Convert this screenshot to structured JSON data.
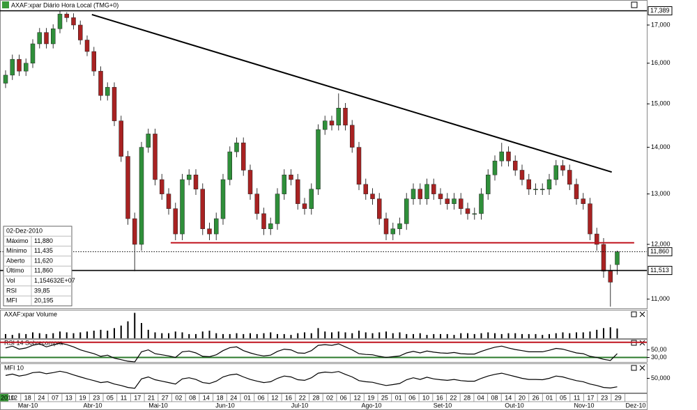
{
  "chart_data": [
    {
      "type": "candlestick",
      "title": "AXAF:xpar Diário Hora Local (TMG+0)",
      "log": true,
      "ylim": [
        10840,
        17670
      ],
      "yticks": [
        {
          "value": 11000,
          "label": "11,000"
        },
        {
          "value": 12000,
          "label": "12,000"
        },
        {
          "value": 13000,
          "label": "13,000"
        },
        {
          "value": 14000,
          "label": "14,000"
        },
        {
          "value": 15000,
          "label": "15,000"
        },
        {
          "value": 16000,
          "label": "16,000"
        },
        {
          "value": 17000,
          "label": "17,000"
        }
      ],
      "up_color": "#2f8f3a",
      "down_color": "#a82222",
      "open": [
        15500,
        15700,
        16100,
        15800,
        16000,
        16500,
        16800,
        16500,
        16900,
        17300,
        17200,
        17000,
        16600,
        16300,
        15800,
        15200,
        15400,
        14600,
        13800,
        12500,
        12000,
        14000,
        14300,
        13300,
        13000,
        12700,
        12200,
        13300,
        13400,
        13100,
        12300,
        12200,
        12500,
        13300,
        13900,
        14100,
        13500,
        13000,
        12600,
        12300,
        12400,
        13000,
        13400,
        13300,
        12800,
        12700,
        13100,
        14400,
        14600,
        14500,
        14900,
        14500,
        14000,
        13200,
        13000,
        12900,
        12500,
        12200,
        12300,
        12400,
        12900,
        13100,
        12900,
        13200,
        13000,
        12900,
        12800,
        12900,
        12700,
        12600,
        12600,
        13000,
        13400,
        13700,
        13900,
        13700,
        13500,
        13300,
        13100,
        13100,
        13100,
        13300,
        13600,
        13500,
        13200,
        12900,
        12800,
        12200,
        12000,
        11500,
        11620
      ],
      "high": [
        15820,
        16220,
        16220,
        16120,
        16620,
        16920,
        16920,
        17020,
        17389,
        17350,
        17320,
        17120,
        16720,
        16420,
        15920,
        15520,
        15520,
        14720,
        13920,
        12620,
        14120,
        14420,
        14420,
        13420,
        13120,
        12820,
        13420,
        13520,
        13520,
        13220,
        12420,
        12620,
        13420,
        14020,
        14220,
        14220,
        13620,
        13120,
        12720,
        12520,
        13120,
        13520,
        13520,
        13420,
        12920,
        13220,
        14520,
        14720,
        14720,
        15250,
        15020,
        14620,
        14120,
        13320,
        13120,
        13020,
        12620,
        12420,
        12520,
        13020,
        13220,
        13220,
        13320,
        13320,
        13120,
        13020,
        13020,
        13020,
        12820,
        12720,
        13120,
        13520,
        13820,
        14100,
        14020,
        13820,
        13620,
        13420,
        13220,
        13220,
        13420,
        13720,
        13720,
        13620,
        13320,
        13020,
        12920,
        12320,
        12120,
        11620,
        11880
      ],
      "low": [
        15380,
        15580,
        15680,
        15680,
        15880,
        16380,
        16380,
        16380,
        16780,
        17080,
        16880,
        16480,
        16180,
        15680,
        15080,
        15080,
        14480,
        13680,
        12380,
        11500,
        11880,
        13880,
        13180,
        12880,
        12580,
        12080,
        12080,
        13180,
        12980,
        12180,
        12080,
        12080,
        12380,
        13180,
        13780,
        13380,
        12880,
        12480,
        12180,
        12180,
        12280,
        12880,
        13180,
        12680,
        12580,
        12580,
        12980,
        14280,
        14380,
        14380,
        14380,
        13880,
        13080,
        12880,
        12780,
        12380,
        12080,
        12080,
        12180,
        12280,
        12780,
        12780,
        12780,
        12880,
        12780,
        12680,
        12680,
        12580,
        12480,
        12480,
        12480,
        12880,
        13280,
        13580,
        13580,
        13380,
        13180,
        12980,
        12980,
        12980,
        12980,
        13180,
        13380,
        13080,
        12780,
        12680,
        12080,
        11880,
        11380,
        10870,
        11435
      ],
      "close": [
        15700,
        16100,
        15800,
        16000,
        16500,
        16800,
        16500,
        16900,
        17300,
        17200,
        17000,
        16600,
        16300,
        15800,
        15200,
        15400,
        14600,
        13800,
        12500,
        12000,
        14000,
        14300,
        13300,
        13000,
        12700,
        12200,
        13300,
        13400,
        13100,
        12300,
        12200,
        12500,
        13300,
        13900,
        14100,
        13500,
        13000,
        12600,
        12300,
        12400,
        13000,
        13400,
        13300,
        12800,
        12700,
        13100,
        14400,
        14600,
        14500,
        14900,
        14500,
        14000,
        13200,
        13000,
        12900,
        12500,
        12200,
        12300,
        12400,
        12900,
        13100,
        12900,
        13200,
        13000,
        12900,
        12800,
        12900,
        12700,
        12600,
        12600,
        13000,
        13400,
        13700,
        13900,
        13700,
        13500,
        13300,
        13100,
        13100,
        13100,
        13300,
        13600,
        13500,
        13200,
        12900,
        12800,
        12200,
        12000,
        11500,
        11300,
        11860
      ],
      "price_markers": [
        {
          "value": 17389,
          "label": "17,389",
          "style": "solid"
        },
        {
          "value": 11860,
          "label": "11,860",
          "style": "dotted"
        },
        {
          "value": 11513,
          "label": "11,513",
          "style": "solid"
        }
      ],
      "trendlines": [
        {
          "x": [
            12.7,
            89.2
          ],
          "y": [
            17284,
            13460
          ],
          "color": "#000000"
        },
        {
          "x": [
            24.3,
            92.5
          ],
          "y": [
            12030,
            12030
          ],
          "color": "#c0141e"
        }
      ],
      "info_box": {
        "date": "02-Dez-2010",
        "rows": [
          [
            "Máximo",
            "11,880"
          ],
          [
            "Mínimo",
            "11,435"
          ],
          [
            "Aberto",
            "11,620"
          ],
          [
            "Último",
            "11,860"
          ],
          [
            "Vol",
            "1,154632E+07"
          ],
          [
            "RSI",
            "39,85"
          ],
          [
            "MFI",
            "20,195"
          ]
        ]
      }
    },
    {
      "type": "bar",
      "title": "AXAF:xpar Volume",
      "ylim": [
        0,
        32
      ],
      "color": "#000000",
      "values": [
        5,
        4,
        6,
        5,
        7,
        6,
        5,
        6,
        8,
        7,
        6,
        7,
        8,
        9,
        10,
        9,
        12,
        15,
        20,
        30,
        18,
        10,
        7,
        6,
        6,
        8,
        7,
        5,
        5,
        8,
        9,
        6,
        5,
        5,
        6,
        5,
        6,
        5,
        6,
        7,
        5,
        5,
        4,
        6,
        7,
        6,
        12,
        8,
        7,
        8,
        7,
        6,
        9,
        7,
        6,
        7,
        8,
        6,
        7,
        5,
        5,
        6,
        4,
        5,
        5,
        5,
        4,
        6,
        6,
        5,
        6,
        7,
        6,
        5,
        6,
        6,
        5,
        5,
        5,
        4,
        5,
        6,
        7,
        6,
        7,
        7,
        8,
        10,
        12,
        13,
        11.54632
      ]
    },
    {
      "type": "line",
      "title": "RSI 14 Sobrecompra",
      "ylim": [
        18,
        77
      ],
      "color": "#000000",
      "yticks": [
        {
          "value": 50,
          "label": "50,00"
        },
        {
          "value": 30,
          "label": "30,00"
        }
      ],
      "bands": [
        {
          "value": 70,
          "color": "#c0141e"
        },
        {
          "value": 30,
          "color": "#2a7a2a"
        }
      ],
      "values": [
        55,
        60,
        52,
        55,
        62,
        66,
        58,
        63,
        68,
        64,
        58,
        50,
        45,
        40,
        33,
        36,
        28,
        24,
        20,
        18,
        45,
        50,
        40,
        37,
        34,
        30,
        45,
        47,
        42,
        33,
        32,
        37,
        48,
        56,
        58,
        48,
        42,
        37,
        34,
        36,
        46,
        52,
        50,
        42,
        41,
        48,
        62,
        64,
        62,
        66,
        58,
        50,
        40,
        38,
        37,
        33,
        30,
        32,
        34,
        42,
        46,
        42,
        47,
        44,
        42,
        41,
        43,
        40,
        39,
        39,
        46,
        52,
        57,
        60,
        55,
        51,
        48,
        45,
        45,
        45,
        49,
        54,
        52,
        47,
        42,
        40,
        33,
        30,
        25,
        22,
        39.85
      ]
    },
    {
      "type": "line",
      "title": "MFI 10",
      "ylim": [
        0,
        100
      ],
      "color": "#000000",
      "yticks": [
        {
          "value": 50,
          "label": "50,000"
        }
      ],
      "values": [
        60,
        65,
        58,
        62,
        70,
        72,
        66,
        70,
        75,
        70,
        62,
        55,
        48,
        42,
        35,
        38,
        30,
        25,
        18,
        15,
        48,
        55,
        45,
        40,
        35,
        30,
        48,
        52,
        46,
        35,
        32,
        40,
        55,
        62,
        65,
        55,
        46,
        40,
        35,
        38,
        50,
        58,
        55,
        45,
        43,
        52,
        68,
        72,
        70,
        74,
        64,
        55,
        42,
        38,
        36,
        30,
        25,
        28,
        32,
        45,
        52,
        46,
        54,
        48,
        45,
        43,
        46,
        42,
        40,
        40,
        50,
        58,
        64,
        68,
        62,
        56,
        50,
        46,
        46,
        45,
        50,
        58,
        55,
        48,
        42,
        38,
        30,
        25,
        18,
        16,
        20.195
      ]
    }
  ],
  "x_axis": {
    "year": "2010",
    "days": [
      "12",
      "18",
      "24",
      "07",
      "13",
      "19",
      "23",
      "05",
      "11",
      "17",
      "21",
      "27",
      "02",
      "08",
      "14",
      "18",
      "24",
      "01",
      "06",
      "12",
      "16",
      "22",
      "28",
      "02",
      "06",
      "12",
      "19",
      "25",
      "01",
      "06",
      "10",
      "16",
      "22",
      "28",
      "04",
      "08",
      "14",
      "20",
      "26",
      "01",
      "05",
      "11",
      "17",
      "23",
      "29"
    ],
    "months": [
      "Mar-10",
      "Abr-10",
      "Mai-10",
      "Jun-10",
      "Jul-10",
      "Ago-10",
      "Set-10",
      "Out-10",
      "Nov-10",
      "Dez-10"
    ]
  }
}
